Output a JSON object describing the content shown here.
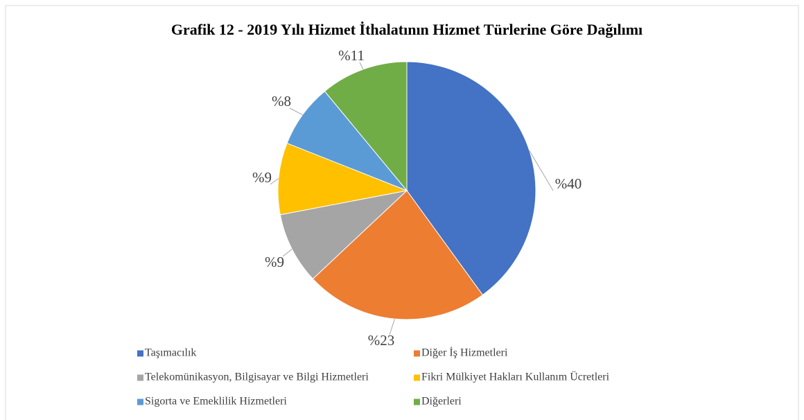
{
  "chart_data": {
    "type": "pie",
    "title": "Grafik 12 - 2019 Yılı Hizmet İthalatının Hizmet Türlerine Göre Dağılımı",
    "categories": [
      "Taşımacılık",
      "Diğer İş Hizmetleri",
      "Telekomünikasyon, Bilgisayar ve Bilgi Hizmetleri",
      "Fikri Mülkiyet Hakları Kullanım Ücretleri",
      "Sigorta ve Emeklilik Hizmetleri",
      "Diğerleri"
    ],
    "values": [
      40,
      23,
      9,
      9,
      8,
      11
    ],
    "value_labels": [
      "%40",
      "%23",
      "%9",
      "%9",
      "%8",
      "%11"
    ],
    "colors": [
      "#4472c4",
      "#ed7d31",
      "#a5a5a5",
      "#ffc000",
      "#5b9bd5",
      "#70ad47"
    ],
    "legend": "bottom"
  }
}
